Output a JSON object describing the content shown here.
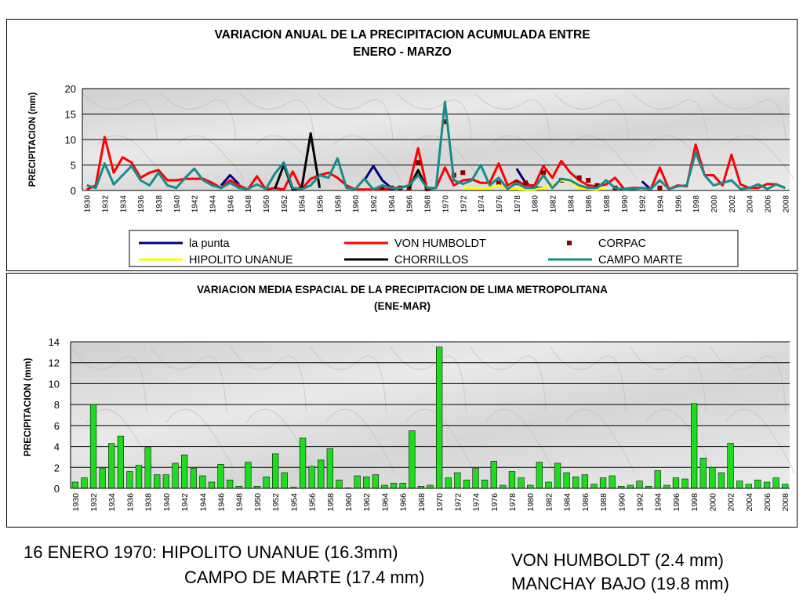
{
  "chart_data": [
    {
      "type": "line",
      "title": "VARIACION ANUAL DE LA PRECIPITACION ACUMULADA ENTRE",
      "subtitle": "ENERO - MARZO",
      "ylabel": "PRECIPITACION (mm)",
      "xlabel": "",
      "ylim": [
        0,
        20
      ],
      "yticks": [
        0,
        5,
        10,
        15,
        20
      ],
      "x": [
        1930,
        1931,
        1932,
        1933,
        1934,
        1935,
        1936,
        1937,
        1938,
        1939,
        1940,
        1941,
        1942,
        1943,
        1944,
        1945,
        1946,
        1947,
        1948,
        1949,
        1950,
        1951,
        1952,
        1953,
        1954,
        1955,
        1956,
        1957,
        1958,
        1959,
        1960,
        1961,
        1962,
        1963,
        1964,
        1965,
        1966,
        1967,
        1968,
        1969,
        1970,
        1971,
        1972,
        1973,
        1974,
        1975,
        1976,
        1977,
        1978,
        1979,
        1980,
        1981,
        1982,
        1983,
        1984,
        1985,
        1986,
        1987,
        1988,
        1989,
        1990,
        1991,
        1992,
        1993,
        1994,
        1995,
        1996,
        1997,
        1998,
        1999,
        2000,
        2001,
        2002,
        2003,
        2004,
        2005,
        2006,
        2007,
        2008
      ],
      "xtick_labels": [
        "1930",
        "1932",
        "1934",
        "1936",
        "1938",
        "1940",
        "1942",
        "1944",
        "1946",
        "1948",
        "1950",
        "1952",
        "1954",
        "1956",
        "1958",
        "1960",
        "1962",
        "1964",
        "1966",
        "1968",
        "1970",
        "1972",
        "1974",
        "1976",
        "1978",
        "1980",
        "1982",
        "1984",
        "1986",
        "1988",
        "1990",
        "1992",
        "1994",
        "1996",
        "1998",
        "2000",
        "2002",
        "2004",
        "2006",
        "2008"
      ],
      "grid": true,
      "legend_position": "bottom",
      "series": [
        {
          "name": "la punta",
          "color": "#000080",
          "style": "line",
          "values": [
            null,
            null,
            null,
            null,
            null,
            null,
            1.0,
            null,
            null,
            null,
            null,
            null,
            null,
            null,
            null,
            1.0,
            3.0,
            1.2,
            null,
            null,
            null,
            null,
            null,
            null,
            null,
            null,
            null,
            null,
            null,
            null,
            null,
            2.0,
            4.8,
            2.0,
            0.5,
            0.5,
            null,
            null,
            null,
            null,
            null,
            null,
            null,
            null,
            null,
            null,
            null,
            null,
            4.3,
            1.5,
            0.5,
            0.5,
            null,
            null,
            null,
            null,
            null,
            null,
            null,
            null,
            null,
            null,
            1.8,
            0.2,
            null,
            0.2,
            null,
            null,
            null,
            null,
            null,
            null,
            null,
            null,
            null,
            null,
            null,
            null,
            null
          ]
        },
        {
          "name": "VON HUMBOLDT",
          "color": "#ff0000",
          "style": "line",
          "values": [
            0.2,
            1.0,
            10.5,
            3.5,
            6.5,
            5.5,
            2.5,
            3.5,
            4.0,
            2.0,
            2.0,
            2.3,
            2.3,
            2.3,
            1.5,
            0.5,
            2.0,
            1.0,
            0.2,
            2.8,
            0.2,
            0.5,
            0.2,
            3.7,
            0.2,
            2.3,
            3.0,
            3.5,
            2.5,
            1.0,
            0.2,
            0.2,
            0.2,
            0.2,
            0.3,
            0.5,
            1.0,
            8.3,
            0.2,
            0.5,
            4.5,
            1.0,
            2.0,
            2.2,
            1.5,
            1.5,
            5.3,
            1.0,
            2.0,
            1.0,
            1.0,
            4.8,
            2.5,
            5.8,
            3.5,
            2.0,
            1.0,
            0.8,
            1.2,
            2.5,
            0.3,
            0.5,
            0.5,
            0.3,
            4.5,
            0.3,
            1.0,
            0.8,
            9.0,
            3.0,
            3.0,
            1.0,
            7.0,
            1.2,
            0.5,
            0.5,
            1.3,
            1.2,
            0.5
          ]
        },
        {
          "name": "CORPAC",
          "color": "#8b0000",
          "style": "marker",
          "values": [
            null,
            null,
            null,
            null,
            null,
            null,
            null,
            null,
            null,
            null,
            null,
            null,
            null,
            null,
            null,
            null,
            null,
            null,
            null,
            null,
            null,
            null,
            null,
            null,
            null,
            null,
            null,
            null,
            null,
            null,
            null,
            null,
            null,
            0.5,
            0.5,
            0.5,
            0.5,
            5.5,
            0.3,
            null,
            13.5,
            3.0,
            3.5,
            null,
            null,
            null,
            1.5,
            null,
            1.5,
            1.5,
            null,
            3.5,
            null,
            2.0,
            null,
            2.5,
            2.0,
            1.0,
            null,
            0.5,
            null,
            null,
            null,
            null,
            0.5,
            null,
            null,
            null,
            null,
            null,
            null,
            null,
            null,
            null,
            null,
            null,
            null,
            null,
            null
          ]
        },
        {
          "name": "HIPOLITO UNANUE",
          "color": "#ffff00",
          "style": "line",
          "values": [
            null,
            null,
            null,
            null,
            null,
            null,
            null,
            null,
            null,
            null,
            null,
            null,
            null,
            null,
            null,
            null,
            null,
            null,
            null,
            null,
            null,
            null,
            null,
            null,
            null,
            null,
            null,
            null,
            null,
            null,
            null,
            null,
            null,
            null,
            null,
            null,
            null,
            null,
            null,
            null,
            16.3,
            null,
            0.5,
            0.5,
            0.3,
            0.5,
            1.0,
            0.3,
            0.3,
            0.2,
            0.2,
            0.5,
            1.0,
            2.0,
            1.8,
            0.5,
            0.3,
            0.2,
            0.5,
            null,
            null,
            null,
            null,
            null,
            null,
            null,
            null,
            null,
            null,
            null,
            null,
            null,
            null,
            null,
            null,
            null,
            null,
            null,
            null
          ]
        },
        {
          "name": "CHORRILLOS",
          "color": "#000000",
          "style": "line",
          "values": [
            null,
            null,
            null,
            null,
            null,
            null,
            null,
            null,
            null,
            null,
            null,
            null,
            null,
            null,
            null,
            null,
            null,
            null,
            null,
            null,
            null,
            0.3,
            5.0,
            0.2,
            0.5,
            11.2,
            0.5,
            null,
            null,
            1.5,
            null,
            null,
            null,
            null,
            null,
            null,
            0.5,
            4.0,
            0.2,
            null,
            null,
            null,
            null,
            null,
            null,
            null,
            null,
            null,
            null,
            null,
            null,
            null,
            null,
            null,
            null,
            null,
            null,
            null,
            null,
            null,
            null,
            null,
            null,
            null,
            null,
            null,
            null,
            null,
            null,
            null,
            null,
            null,
            null,
            null,
            null,
            null,
            null,
            null,
            null
          ]
        },
        {
          "name": "CAMPO MARTE",
          "color": "#1a8a8a",
          "style": "line",
          "values": [
            1.0,
            0.5,
            5.3,
            1.2,
            3.0,
            4.8,
            2.0,
            1.0,
            3.5,
            1.0,
            0.5,
            2.5,
            4.3,
            2.0,
            1.0,
            0.5,
            1.5,
            0.5,
            0.3,
            1.2,
            0.3,
            3.3,
            5.5,
            0.5,
            0.3,
            1.0,
            3.0,
            2.5,
            6.3,
            0.5,
            0.3,
            2.3,
            0.2,
            1.0,
            0.5,
            0.5,
            1.0,
            3.0,
            0.5,
            0.5,
            17.4,
            2.0,
            1.3,
            2.0,
            5.0,
            1.0,
            2.5,
            0.3,
            1.5,
            0.5,
            0.5,
            3.0,
            0.5,
            2.3,
            2.0,
            1.0,
            0.5,
            0.5,
            2.0,
            0.5,
            0.2,
            0.3,
            0.5,
            0.3,
            2.0,
            0.3,
            0.8,
            1.0,
            7.5,
            3.0,
            1.0,
            1.5,
            2.0,
            0.3,
            0.5,
            1.2,
            0.3,
            1.2,
            0.5
          ]
        }
      ]
    },
    {
      "type": "bar",
      "title": "VARIACION MEDIA ESPACIAL DE LA PRECIPITACION DE LIMA METROPOLITANA",
      "subtitle": "(ENE-MAR)",
      "ylabel": "PRECIPITACION (mm)",
      "xlabel": "",
      "ylim": [
        0,
        14
      ],
      "yticks": [
        0,
        2,
        4,
        6,
        8,
        10,
        12,
        14
      ],
      "categories": [
        1930,
        1931,
        1932,
        1933,
        1934,
        1935,
        1936,
        1937,
        1938,
        1939,
        1940,
        1941,
        1942,
        1943,
        1944,
        1945,
        1946,
        1947,
        1948,
        1949,
        1950,
        1951,
        1952,
        1953,
        1954,
        1955,
        1956,
        1957,
        1958,
        1959,
        1960,
        1961,
        1962,
        1963,
        1964,
        1965,
        1966,
        1967,
        1968,
        1969,
        1970,
        1971,
        1972,
        1973,
        1974,
        1975,
        1976,
        1977,
        1978,
        1979,
        1980,
        1981,
        1982,
        1983,
        1984,
        1985,
        1986,
        1987,
        1988,
        1989,
        1990,
        1991,
        1992,
        1993,
        1994,
        1995,
        1996,
        1997,
        1998,
        1999,
        2000,
        2001,
        2002,
        2003,
        2004,
        2005,
        2006,
        2007,
        2008
      ],
      "xtick_labels": [
        "1930",
        "1932",
        "1934",
        "1936",
        "1938",
        "1940",
        "1942",
        "1944",
        "1946",
        "1948",
        "1950",
        "1952",
        "1954",
        "1956",
        "1958",
        "1960",
        "1962",
        "1964",
        "1966",
        "1968",
        "1970",
        "1972",
        "1974",
        "1976",
        "1978",
        "1980",
        "1982",
        "1984",
        "1986",
        "1988",
        "1990",
        "1992",
        "1994",
        "1996",
        "1998",
        "2000",
        "2002",
        "2004",
        "2006",
        "2008"
      ],
      "values": [
        0.6,
        1.0,
        8.0,
        1.9,
        4.3,
        5.0,
        1.6,
        2.2,
        3.9,
        1.3,
        1.3,
        2.4,
        3.2,
        1.9,
        1.2,
        0.6,
        2.3,
        0.8,
        0.2,
        2.5,
        0.2,
        1.1,
        3.3,
        1.5,
        0.1,
        4.8,
        2.1,
        2.7,
        3.8,
        0.8,
        0.05,
        1.2,
        1.1,
        1.3,
        0.3,
        0.5,
        0.5,
        5.5,
        0.2,
        0.3,
        13.5,
        1.0,
        1.5,
        0.8,
        1.9,
        0.8,
        2.6,
        0.3,
        1.6,
        1.0,
        0.3,
        2.5,
        0.6,
        2.4,
        1.5,
        1.1,
        1.3,
        0.4,
        1.0,
        1.2,
        0.2,
        0.3,
        0.7,
        0.2,
        1.7,
        0.3,
        1.0,
        0.9,
        8.1,
        2.9,
        2.0,
        1.5,
        4.3,
        0.7,
        0.4,
        0.8,
        0.6,
        1.0,
        0.4
      ],
      "bar_color": "#1ddc1d",
      "grid": true
    }
  ],
  "notes": {
    "left_line1": "16 ENERO 1970: HIPOLITO UNANUE (16.3mm)",
    "left_line2": "CAMPO DE MARTE (17.4 mm)",
    "right_line1": "VON HUMBOLDT (2.4 mm)",
    "right_line2": "MANCHAY BAJO (19.8 mm)"
  }
}
